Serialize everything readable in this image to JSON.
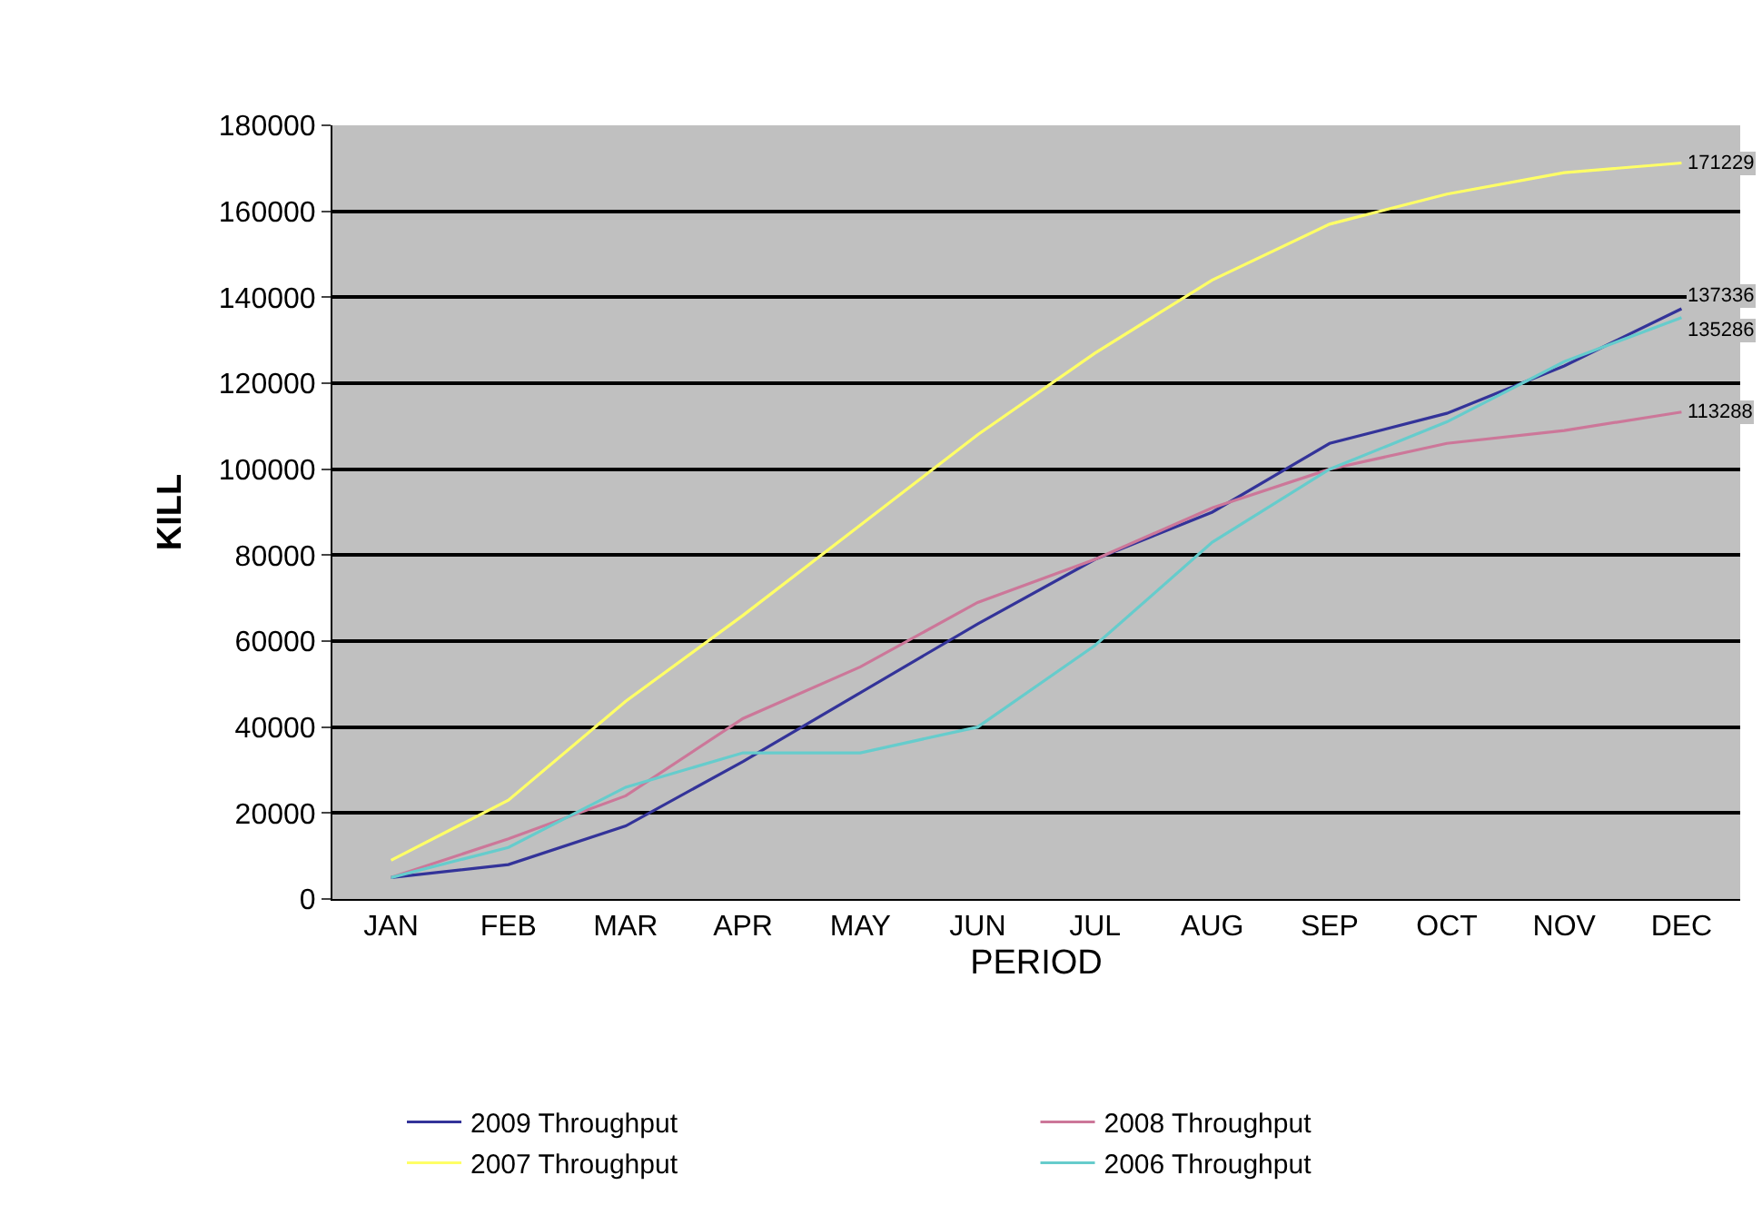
{
  "chart_data": {
    "type": "line",
    "xlabel": "PERIOD",
    "ylabel": "KILL",
    "categories": [
      "JAN",
      "FEB",
      "MAR",
      "APR",
      "MAY",
      "JUN",
      "JUL",
      "AUG",
      "SEP",
      "OCT",
      "NOV",
      "DEC"
    ],
    "series": [
      {
        "name": "2009 Throughput",
        "color": "#333399",
        "values": [
          5000,
          8000,
          17000,
          32000,
          48000,
          64000,
          79000,
          90000,
          106000,
          113000,
          124000,
          137336
        ],
        "value_labels": [
          null,
          null,
          null,
          null,
          null,
          null,
          null,
          null,
          null,
          null,
          null,
          "137336"
        ]
      },
      {
        "name": "2008 Throughput",
        "color": "#cc7799",
        "values": [
          5000,
          14000,
          24000,
          42000,
          54000,
          69000,
          79000,
          91000,
          100000,
          106000,
          109000,
          113288
        ],
        "value_labels": [
          null,
          null,
          null,
          null,
          null,
          null,
          null,
          null,
          null,
          null,
          null,
          "113288"
        ]
      },
      {
        "name": "2007 Throughput",
        "color": "#ffff66",
        "values": [
          9000,
          23000,
          46000,
          66000,
          87000,
          108000,
          127000,
          144000,
          157000,
          164000,
          169000,
          171229
        ],
        "value_labels": [
          null,
          null,
          null,
          null,
          null,
          null,
          null,
          null,
          null,
          null,
          null,
          "171229"
        ]
      },
      {
        "name": "2006 Throughput",
        "color": "#66cccc",
        "values": [
          5000,
          12000,
          26000,
          34000,
          34000,
          40000,
          59000,
          83000,
          100000,
          111000,
          125000,
          135286
        ],
        "value_labels": [
          null,
          null,
          null,
          null,
          null,
          null,
          null,
          null,
          null,
          null,
          null,
          "135286"
        ]
      }
    ],
    "ylim": [
      0,
      180000
    ],
    "yticks": [
      0,
      20000,
      40000,
      60000,
      80000,
      100000,
      120000,
      140000,
      160000,
      180000
    ],
    "grid": "y",
    "legend": "bottom",
    "marker": "none",
    "line_style": "solid"
  }
}
